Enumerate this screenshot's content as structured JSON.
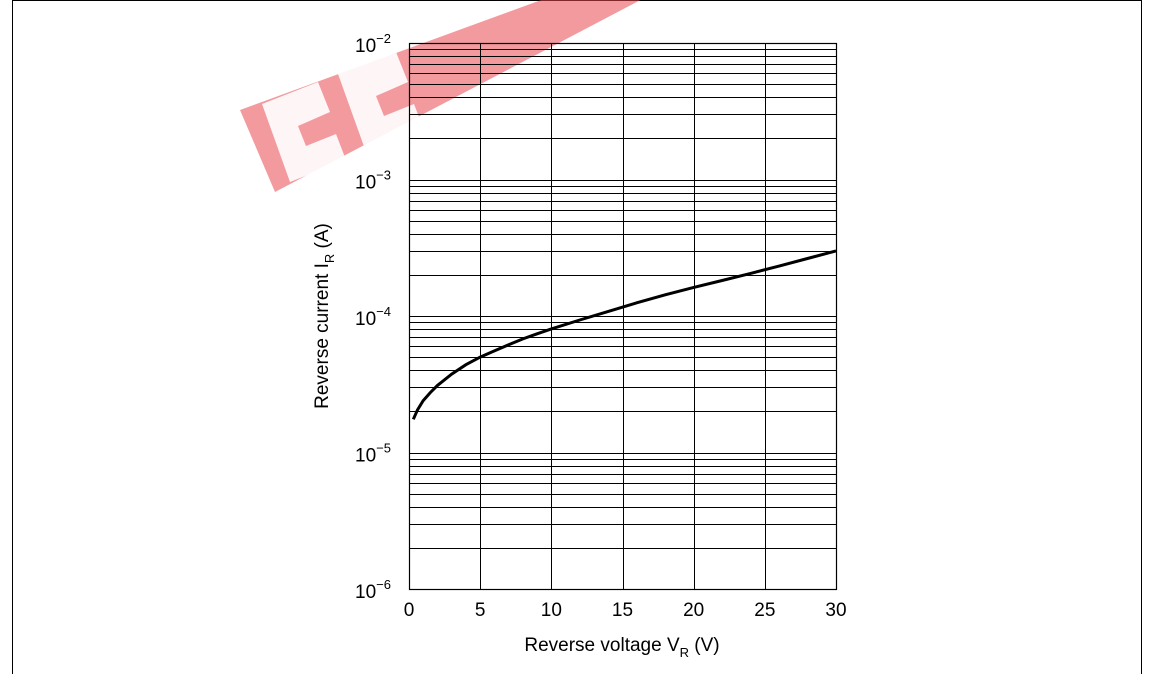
{
  "chart_data": {
    "type": "line",
    "title": "",
    "xlabel": {
      "main": "Reverse voltage  V",
      "sub": "R",
      "unit": " (V)"
    },
    "ylabel": {
      "main": "Reverse current  I",
      "sub": "R",
      "unit": "  (A)"
    },
    "xlim": [
      0,
      30
    ],
    "ylim": [
      1e-06,
      0.01
    ],
    "yscale": "log",
    "grid": true,
    "legend": "none",
    "x_ticks": [
      "0",
      "5",
      "10",
      "15",
      "20",
      "25",
      "30"
    ],
    "y_ticks": [
      {
        "base": "10",
        "exp": "−6"
      },
      {
        "base": "10",
        "exp": "−5"
      },
      {
        "base": "10",
        "exp": "−4"
      },
      {
        "base": "10",
        "exp": "−3"
      },
      {
        "base": "10",
        "exp": "−2"
      }
    ],
    "series": [
      {
        "color": "#000000",
        "x": [
          0.3,
          0.6,
          1,
          1.5,
          2,
          3,
          4,
          5,
          6,
          7,
          8,
          9,
          10,
          12,
          14,
          16,
          18,
          20,
          22,
          24,
          26,
          28,
          30
        ],
        "y": [
          1.75e-05,
          2.05e-05,
          2.4e-05,
          2.75e-05,
          3.1e-05,
          3.75e-05,
          4.4e-05,
          5e-05,
          5.55e-05,
          6.15e-05,
          6.8e-05,
          7.4e-05,
          8.05e-05,
          9.35e-05,
          0.000108,
          0.000125,
          0.000143,
          0.000162,
          0.000182,
          0.000205,
          0.000232,
          0.000264,
          0.0003
        ]
      }
    ]
  },
  "watermark": {
    "text": "EEPW",
    "color": "#e8474f"
  }
}
